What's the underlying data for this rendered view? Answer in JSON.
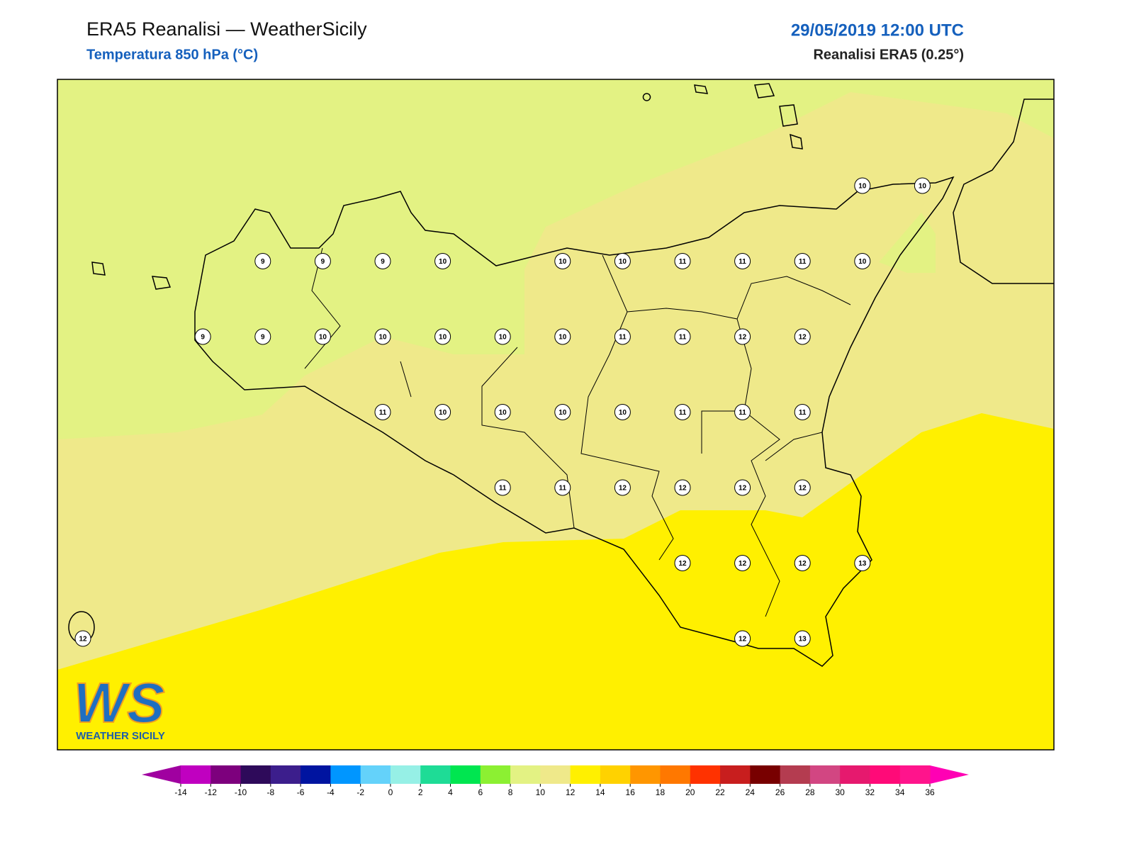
{
  "header": {
    "title": "ERA5 Reanalisi — WeatherSicily",
    "subtitle": "Temperatura 850 hPa (°C)",
    "date": "29/05/2019 12:00 UTC",
    "source": "Reanalisi ERA5 (0.25°)"
  },
  "logo": {
    "mark": "WS",
    "name": "WEATHER SICILY"
  },
  "stations": {
    "rows": [
      [
        null,
        null,
        null,
        null,
        null,
        null,
        null,
        null,
        null,
        null,
        null,
        null,
        null,
        10,
        10
      ],
      [
        null,
        null,
        null,
        9,
        9,
        9,
        10,
        null,
        10,
        10,
        11,
        11,
        11,
        10,
        null
      ],
      [
        null,
        null,
        9,
        9,
        10,
        10,
        10,
        10,
        10,
        11,
        11,
        12,
        12,
        null,
        null
      ],
      [
        null,
        null,
        null,
        null,
        null,
        11,
        10,
        10,
        10,
        10,
        11,
        11,
        11,
        null,
        null
      ],
      [
        null,
        null,
        null,
        null,
        null,
        null,
        null,
        11,
        11,
        12,
        12,
        12,
        12,
        null,
        null
      ],
      [
        null,
        null,
        null,
        null,
        null,
        null,
        null,
        null,
        null,
        null,
        12,
        12,
        12,
        13,
        null
      ],
      [
        12,
        null,
        null,
        null,
        null,
        null,
        null,
        null,
        null,
        null,
        null,
        12,
        13,
        null,
        null
      ]
    ]
  },
  "colorbar": {
    "ticks": [
      -14,
      -12,
      -10,
      -8,
      -6,
      -4,
      -2,
      0,
      2,
      4,
      6,
      8,
      10,
      12,
      14,
      16,
      18,
      20,
      22,
      24,
      26,
      28,
      30,
      32,
      34,
      36
    ],
    "colors": [
      "#c000c0",
      "#7d007d",
      "#2e0a5a",
      "#3c1e8c",
      "#0014a0",
      "#0096ff",
      "#64d2fa",
      "#96f0e6",
      "#1edc96",
      "#00e650",
      "#8cf032",
      "#e3f283",
      "#efe98a",
      "#fff000",
      "#ffd200",
      "#ff9600",
      "#ff7800",
      "#ff3200",
      "#c81e1e",
      "#780000",
      "#b43c50",
      "#d24682",
      "#e6196e",
      "#ff0a78",
      "#ff148c"
    ],
    "under": "#a000a0",
    "over": "#ff00b4"
  }
}
